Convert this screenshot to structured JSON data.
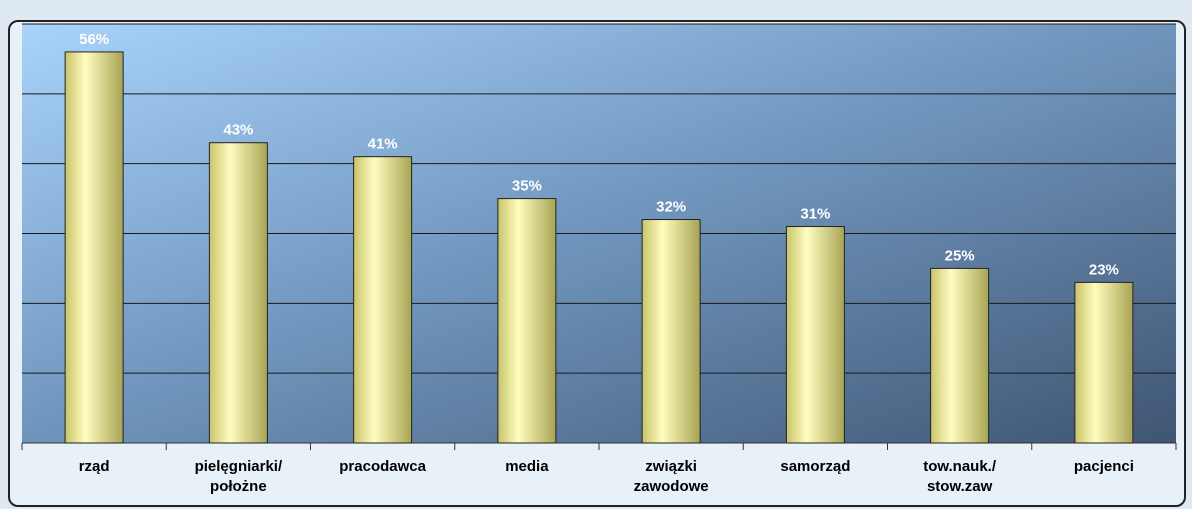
{
  "chart_data": {
    "type": "bar",
    "categories": [
      "rząd",
      "pielęgniarki/\npołożne",
      "pracodawca",
      "media",
      "związki\nzawodowe",
      "samorząd",
      "tow.nauk./\nstow.zaw",
      "pacjenci"
    ],
    "values": [
      56,
      43,
      41,
      35,
      32,
      31,
      25,
      23
    ],
    "value_labels": [
      "56%",
      "43%",
      "41%",
      "35%",
      "32%",
      "31%",
      "25%",
      "23%"
    ],
    "color": "#f2ee9c",
    "ylim": [
      0,
      60
    ],
    "yticks": [
      0,
      10,
      20,
      30,
      40,
      50,
      60
    ],
    "grid": true
  }
}
